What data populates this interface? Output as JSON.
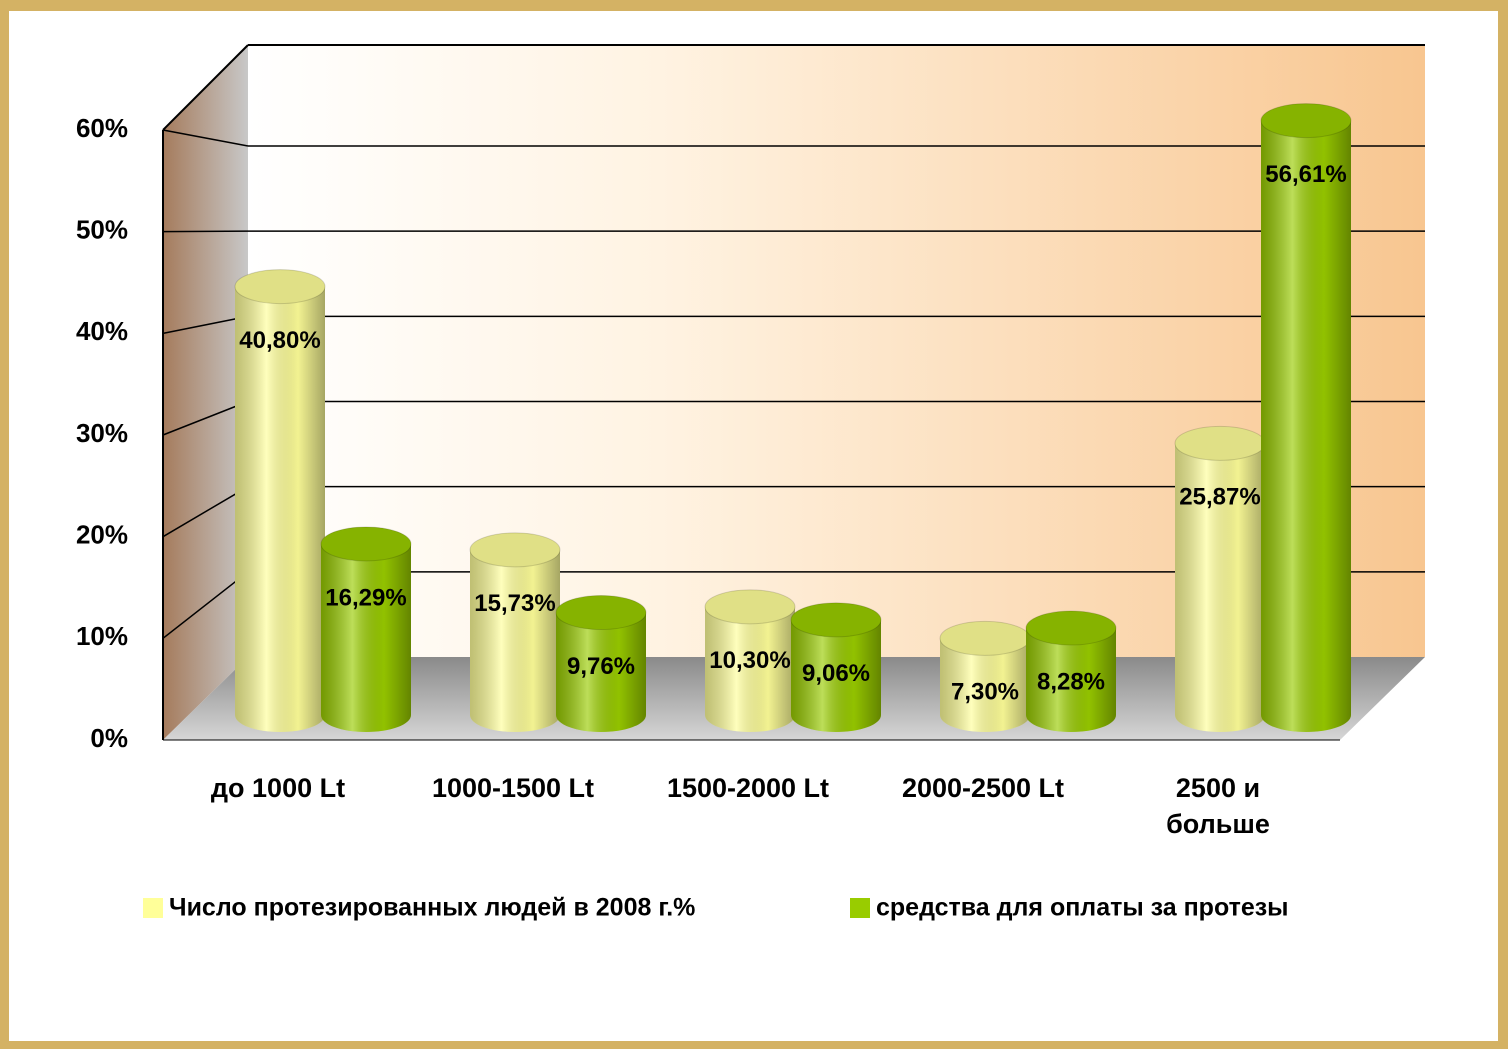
{
  "chart_data": {
    "type": "bar3d",
    "categories": [
      "до 1000 Lt",
      "1000-1500 Lt",
      "1500-2000 Lt",
      "2000-2500 Lt",
      "2500 и\nбольше"
    ],
    "series": [
      {
        "name": "Число протезированных людей в 2008 г.%",
        "color": "#ffff99",
        "values": [
          40.8,
          15.73,
          10.3,
          7.3,
          25.87
        ],
        "value_labels": [
          "40,80%",
          "15,73%",
          "10,30%",
          "7,30%",
          "25,87%"
        ]
      },
      {
        "name": "средства для оплаты за протезы",
        "color": "#99cc00",
        "values": [
          16.29,
          9.76,
          9.06,
          8.28,
          56.61
        ],
        "value_labels": [
          "16,29%",
          "9,76%",
          "9,06%",
          "8,28%",
          "56,61%"
        ]
      }
    ],
    "ylim": [
      0,
      60
    ],
    "yticks": [
      {
        "value": 0,
        "label": "0%"
      },
      {
        "value": 10,
        "label": "10%"
      },
      {
        "value": 20,
        "label": "20%"
      },
      {
        "value": 30,
        "label": "30%"
      },
      {
        "value": 40,
        "label": "40%"
      },
      {
        "value": 50,
        "label": "50%"
      },
      {
        "value": 60,
        "label": "60%"
      }
    ],
    "grid": true,
    "legend": "bottom"
  }
}
